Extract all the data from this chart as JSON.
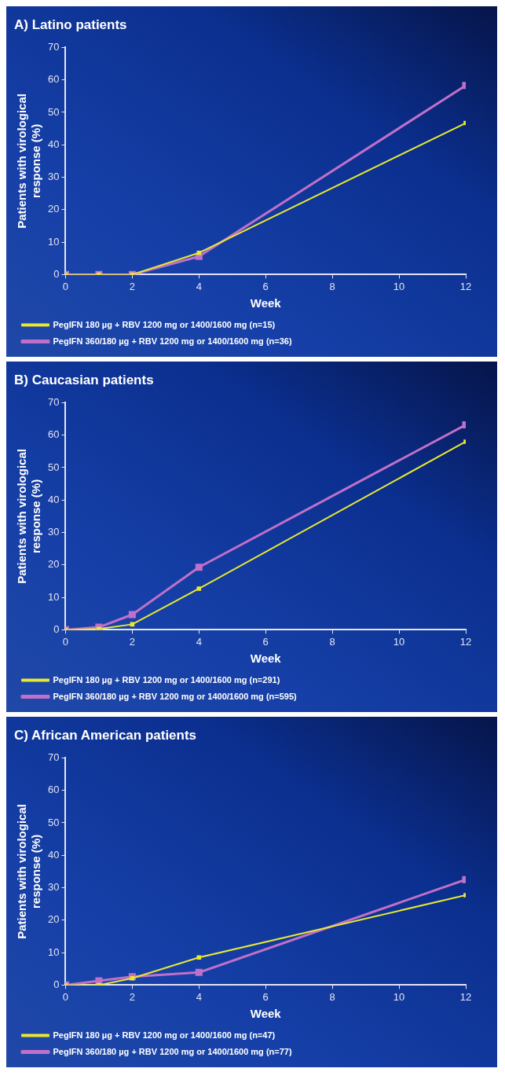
{
  "chart_data": [
    {
      "type": "line",
      "title": "A) Latino patients",
      "xlabel": "Week",
      "ylabel": "Patients with virological response (%)",
      "x": [
        0,
        1,
        2,
        4,
        12
      ],
      "xlim": [
        0,
        12
      ],
      "xticks": [
        0,
        2,
        4,
        6,
        8,
        10,
        12
      ],
      "ylim": [
        0,
        70
      ],
      "yticks": [
        0,
        10,
        20,
        30,
        40,
        50,
        60,
        70
      ],
      "grid": false,
      "legend": "bottom",
      "marker": "square",
      "line_style": "solid",
      "series": [
        {
          "name": "PegIFN 180 µg + RBV 1200 mg or 1400/1600 mg (n=15)",
          "color": "#e8e830",
          "values": [
            0,
            0,
            0,
            6.7,
            46.7
          ]
        },
        {
          "name": "PegIFN 360/180 µg + RBV 1200 mg or 1400/1600 mg (n=36)",
          "color": "#c070c8",
          "values": [
            0,
            0,
            0,
            5.6,
            58.3
          ]
        }
      ]
    },
    {
      "type": "line",
      "title": "B) Caucasian patients",
      "xlabel": "Week",
      "ylabel": "Patients with virological response (%)",
      "x": [
        0,
        1,
        2,
        4,
        12
      ],
      "xlim": [
        0,
        12
      ],
      "xticks": [
        0,
        2,
        4,
        6,
        8,
        10,
        12
      ],
      "ylim": [
        0,
        70
      ],
      "yticks": [
        0,
        10,
        20,
        30,
        40,
        50,
        60,
        70
      ],
      "grid": false,
      "legend": "bottom",
      "marker": "square",
      "line_style": "solid",
      "series": [
        {
          "name": "PegIFN 180 µg + RBV 1200 mg or 1400/1600 mg (n=291)",
          "color": "#e8e830",
          "values": [
            0,
            0.3,
            1.7,
            12.7,
            58
          ]
        },
        {
          "name": "PegIFN 360/180 µg + RBV 1200 mg or 1400/1600 mg (n=595)",
          "color": "#c070c8",
          "values": [
            0,
            0.8,
            4.7,
            19.3,
            63.2
          ]
        }
      ]
    },
    {
      "type": "line",
      "title": "C) African American patients",
      "xlabel": "Week",
      "ylabel": "Patients with virological response (%)",
      "x": [
        0,
        1,
        2,
        4,
        12
      ],
      "xlim": [
        0,
        12
      ],
      "xticks": [
        0,
        2,
        4,
        6,
        8,
        10,
        12
      ],
      "ylim": [
        0,
        70
      ],
      "yticks": [
        0,
        10,
        20,
        30,
        40,
        50,
        60,
        70
      ],
      "grid": false,
      "legend": "bottom",
      "marker": "square",
      "line_style": "solid",
      "series": [
        {
          "name": "PegIFN 180 µg + RBV 1200 mg or 1400/1600 mg (n=47)",
          "color": "#e8e830",
          "values": [
            0,
            0,
            2.1,
            8.5,
            27.7
          ]
        },
        {
          "name": "PegIFN 360/180 µg + RBV 1200 mg or 1400/1600 mg (n=77)",
          "color": "#c070c8",
          "values": [
            0,
            1.3,
            2.6,
            3.9,
            32.5
          ]
        }
      ]
    }
  ]
}
